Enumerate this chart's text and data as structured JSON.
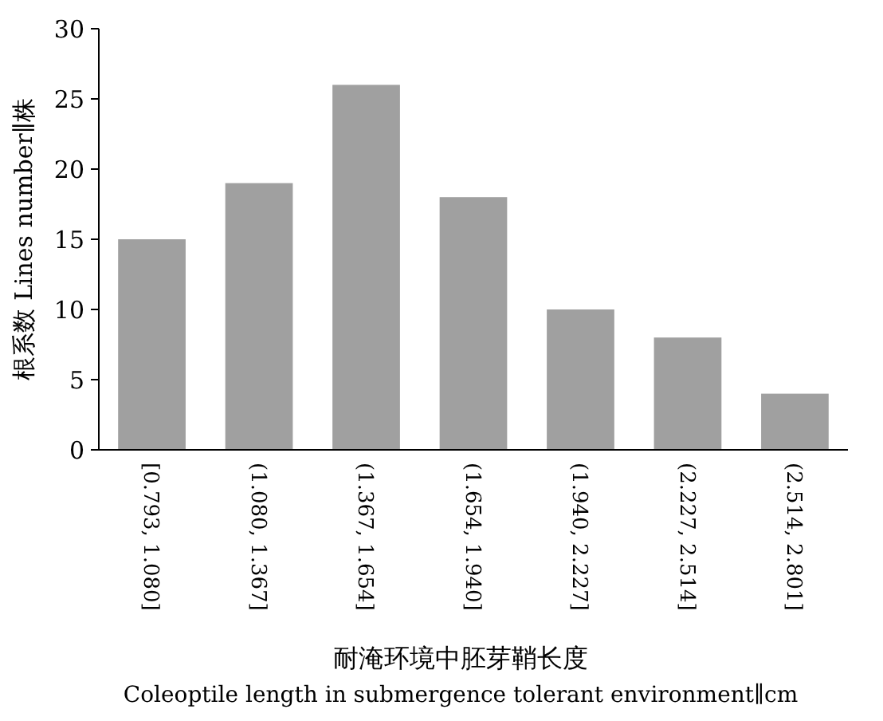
{
  "chart_data": {
    "type": "bar",
    "categories": [
      "[0.793, 1.080]",
      "(1.080, 1.367]",
      "(1.367, 1.654]",
      "(1.654, 1.940]",
      "(1.940, 2.227]",
      "(2.227, 2.514]",
      "(2.514, 2.801]"
    ],
    "values": [
      15,
      19,
      26,
      18,
      10,
      8,
      4
    ],
    "color": "#a0a0a0",
    "ylim": [
      0,
      30
    ],
    "yticks": [
      0,
      5,
      10,
      15,
      20,
      25,
      30
    ],
    "grid": false,
    "ylabel": "根系数 Lines number∥株",
    "xlabel": "耐淹环境中胚芽鞘长度\nColeoptile length in submergence tolerant environment∥cm"
  }
}
